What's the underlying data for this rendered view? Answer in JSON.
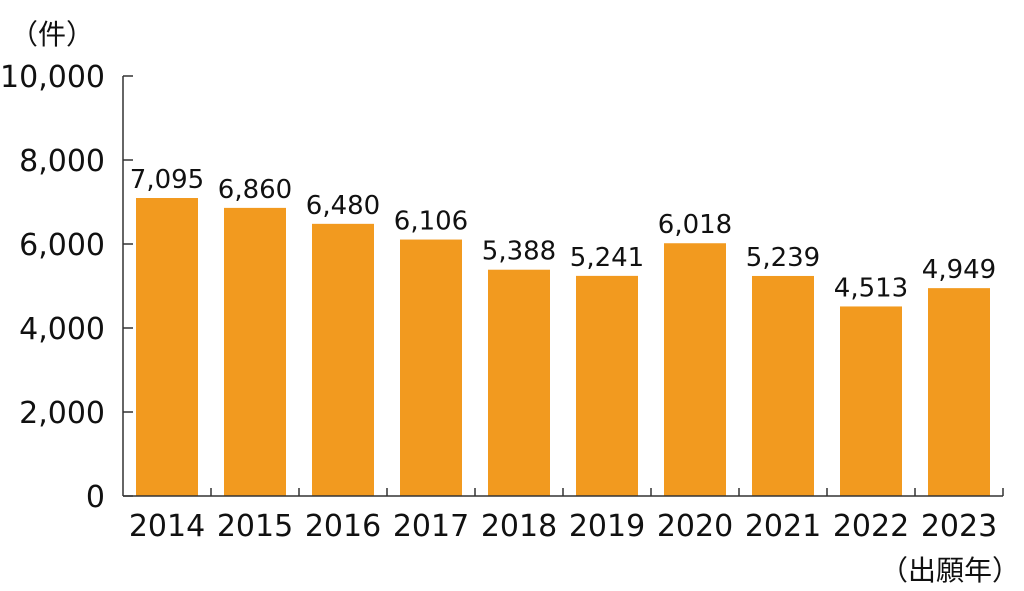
{
  "chart_data": {
    "type": "bar",
    "categories": [
      "2014",
      "2015",
      "2016",
      "2017",
      "2018",
      "2019",
      "2020",
      "2021",
      "2022",
      "2023"
    ],
    "values": [
      7095,
      6860,
      6480,
      6106,
      5388,
      5241,
      6018,
      5239,
      4513,
      4949
    ],
    "value_labels": [
      "7,095",
      "6,860",
      "6,480",
      "6,106",
      "5,388",
      "5,241",
      "6,018",
      "5,239",
      "4,513",
      "4,949"
    ],
    "y_unit": "（件）",
    "x_unit": "（出願年）",
    "ylim": [
      0,
      10000
    ],
    "y_ticks": [
      0,
      2000,
      4000,
      6000,
      8000,
      10000
    ],
    "y_tick_labels": [
      "0",
      "2,000",
      "4,000",
      "6,000",
      "8,000",
      "10,000"
    ],
    "grid": false,
    "legend": "none",
    "bar_color": "#F29A1F",
    "axis_color": "#333333"
  }
}
